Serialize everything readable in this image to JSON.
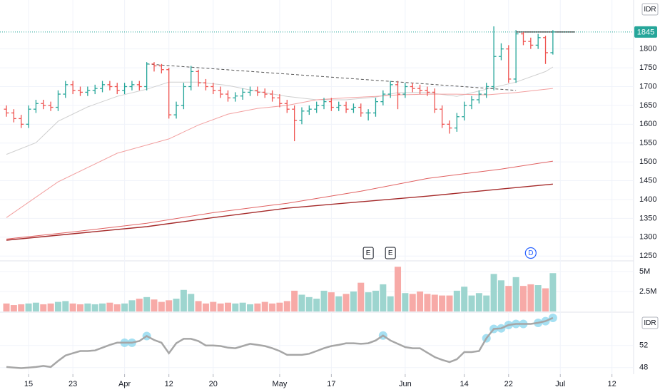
{
  "chart_data": [
    {
      "type": "ohlc",
      "currency": "IDR",
      "xlim": [
        -0.87,
        84.93
      ],
      "ylim": [
        1239,
        1930
      ],
      "yticks": [
        1250,
        1300,
        1350,
        1400,
        1450,
        1500,
        1550,
        1600,
        1650,
        1700,
        1750,
        1800
      ],
      "up_color": "#26a69a",
      "down_color": "#ef5350",
      "grid": true,
      "open": [
        1640,
        1630,
        1615,
        1600,
        1640,
        1655,
        1650,
        1645,
        1680,
        1705,
        1690,
        1685,
        1690,
        1695,
        1705,
        1700,
        1690,
        1700,
        1705,
        1700,
        1760,
        1755,
        1745,
        1625,
        1650,
        1700,
        1740,
        1710,
        1700,
        1690,
        1680,
        1670,
        1675,
        1685,
        1690,
        1685,
        1680,
        1670,
        1655,
        1640,
        1610,
        1635,
        1640,
        1650,
        1660,
        1645,
        1650,
        1640,
        1645,
        1630,
        1630,
        1660,
        1680,
        1705,
        1680,
        1700,
        1695,
        1690,
        1685,
        1640,
        1600,
        1590,
        1620,
        1650,
        1665,
        1680,
        1700,
        1780,
        1800,
        1720,
        1840,
        1820,
        1810,
        1830,
        1790
      ],
      "high": [
        1650,
        1640,
        1625,
        1650,
        1665,
        1665,
        1660,
        1690,
        1715,
        1715,
        1700,
        1700,
        1705,
        1715,
        1715,
        1710,
        1710,
        1715,
        1715,
        1765,
        1765,
        1760,
        1750,
        1660,
        1710,
        1755,
        1745,
        1720,
        1710,
        1700,
        1690,
        1685,
        1695,
        1700,
        1700,
        1695,
        1690,
        1680,
        1665,
        1650,
        1645,
        1650,
        1660,
        1670,
        1670,
        1660,
        1660,
        1655,
        1655,
        1640,
        1670,
        1690,
        1715,
        1715,
        1710,
        1710,
        1705,
        1700,
        1695,
        1650,
        1610,
        1630,
        1660,
        1675,
        1690,
        1710,
        1860,
        1815,
        1810,
        1850,
        1845,
        1830,
        1840,
        1835,
        1850
      ],
      "low": [
        1620,
        1605,
        1590,
        1590,
        1630,
        1640,
        1635,
        1635,
        1670,
        1680,
        1675,
        1675,
        1680,
        1685,
        1690,
        1680,
        1680,
        1690,
        1690,
        1690,
        1740,
        1735,
        1615,
        1615,
        1640,
        1690,
        1700,
        1690,
        1680,
        1670,
        1660,
        1660,
        1665,
        1675,
        1675,
        1670,
        1660,
        1645,
        1630,
        1555,
        1600,
        1625,
        1630,
        1640,
        1635,
        1635,
        1630,
        1630,
        1620,
        1610,
        1620,
        1650,
        1670,
        1640,
        1670,
        1685,
        1680,
        1675,
        1630,
        1590,
        1575,
        1580,
        1610,
        1640,
        1655,
        1670,
        1690,
        1770,
        1710,
        1710,
        1810,
        1800,
        1800,
        1760,
        1785
      ],
      "close": [
        1630,
        1615,
        1600,
        1640,
        1655,
        1650,
        1645,
        1680,
        1705,
        1690,
        1685,
        1690,
        1695,
        1705,
        1700,
        1690,
        1700,
        1705,
        1700,
        1760,
        1755,
        1745,
        1625,
        1650,
        1700,
        1740,
        1710,
        1700,
        1690,
        1680,
        1670,
        1675,
        1685,
        1690,
        1685,
        1680,
        1670,
        1655,
        1640,
        1610,
        1635,
        1640,
        1650,
        1660,
        1645,
        1650,
        1640,
        1645,
        1630,
        1630,
        1660,
        1680,
        1705,
        1680,
        1700,
        1695,
        1690,
        1685,
        1640,
        1600,
        1590,
        1620,
        1650,
        1665,
        1680,
        1700,
        1780,
        1800,
        1720,
        1840,
        1820,
        1810,
        1830,
        1790,
        1845
      ],
      "moving_averages": [
        {
          "color": "#cfcfcf",
          "x": [
            0,
            4,
            7,
            11,
            15,
            19,
            22,
            26,
            30,
            34,
            38,
            42,
            46,
            50,
            53,
            57,
            61,
            65,
            69,
            73,
            74
          ],
          "values": [
            1520,
            1551,
            1608,
            1646,
            1674,
            1693,
            1712,
            1712,
            1703,
            1687,
            1674,
            1665,
            1665,
            1672,
            1684,
            1684,
            1674,
            1693,
            1712,
            1740,
            1752
          ]
        },
        {
          "color": "#f2a0a0",
          "x": [
            0,
            7,
            15,
            22,
            26,
            30,
            34,
            38,
            42,
            46,
            50,
            53,
            57,
            61,
            65,
            69,
            74
          ],
          "values": [
            1352,
            1447,
            1523,
            1561,
            1598,
            1627,
            1642,
            1650,
            1665,
            1670,
            1674,
            1678,
            1680,
            1680,
            1678,
            1684,
            1695
          ]
        },
        {
          "color": "#e06060",
          "x": [
            0,
            9,
            19,
            28,
            38,
            48,
            57,
            67,
            74
          ],
          "values": [
            1295,
            1314,
            1337,
            1365,
            1390,
            1422,
            1456,
            1481,
            1502
          ]
        },
        {
          "color": "#a52a2a",
          "x": [
            0,
            9,
            19,
            28,
            38,
            48,
            57,
            67,
            74
          ],
          "values": [
            1292,
            1309,
            1328,
            1352,
            1377,
            1394,
            1409,
            1428,
            1441
          ]
        }
      ],
      "trendline": {
        "color": "#555555",
        "x": [
          19,
          69
        ],
        "values": [
          1760,
          1690
        ]
      },
      "resistance": {
        "color": "#222222",
        "x": [
          69,
          77
        ],
        "values": [
          1845,
          1845
        ]
      },
      "events": [
        {
          "index": 49,
          "label": "E"
        },
        {
          "index": 52,
          "label": "E"
        },
        {
          "index": 71,
          "label": "D"
        }
      ]
    },
    {
      "type": "bar",
      "xlim": [
        -0.87,
        84.93
      ],
      "ylim": [
        0,
        6250000
      ],
      "yticks": [
        {
          "value": 2500000,
          "label": "2.5M"
        },
        {
          "value": 5000000,
          "label": "5M"
        }
      ],
      "up_color": "#9dd5cf",
      "down_color": "#f7aaa7",
      "values": [
        1000000,
        800000,
        900000,
        1000000,
        1100000,
        900000,
        1000000,
        1200000,
        1300000,
        1000000,
        900000,
        1000000,
        900000,
        1000000,
        1100000,
        900000,
        1000000,
        1400000,
        1600000,
        1800000,
        1500000,
        1200000,
        1400000,
        1600000,
        2700000,
        2200000,
        1300000,
        1000000,
        1200000,
        1000000,
        1100000,
        1000000,
        1100000,
        900000,
        1000000,
        1200000,
        1000000,
        1100000,
        1300000,
        2600000,
        2100000,
        1800000,
        1600000,
        2600000,
        2400000,
        1900000,
        2200000,
        2500000,
        3600000,
        2400000,
        2600000,
        3400000,
        1900000,
        5600000,
        2300000,
        2200000,
        2500000,
        2200000,
        2100000,
        2000000,
        2000000,
        2600000,
        3100000,
        2000000,
        2300000,
        2000000,
        4700000,
        3900000,
        3200000,
        4300000,
        3200000,
        3400000,
        3300000,
        2900000,
        4800000
      ]
    },
    {
      "type": "line",
      "currency": "IDR",
      "xlim": [
        -0.87,
        84.93
      ],
      "ylim": [
        46.8,
        57.9
      ],
      "yticks": [
        48,
        52
      ],
      "color": "#a6a6a6",
      "highlight_color": "#8fd8ef",
      "values": [
        48.1,
        48.0,
        47.9,
        48.0,
        48.1,
        48.3,
        48.1,
        49.2,
        50.2,
        50.6,
        51.0,
        51.0,
        51.1,
        51.6,
        52.1,
        52.5,
        52.5,
        52.5,
        52.8,
        53.7,
        53.0,
        52.5,
        50.6,
        52.4,
        53.2,
        53.2,
        52.8,
        52.0,
        52.0,
        51.9,
        51.6,
        51.5,
        51.9,
        52.3,
        52.1,
        51.9,
        51.5,
        51.0,
        50.3,
        50.3,
        50.3,
        50.5,
        51.0,
        51.5,
        51.9,
        52.1,
        52.4,
        52.4,
        52.3,
        52.4,
        52.9,
        53.8,
        52.9,
        52.3,
        51.7,
        51.5,
        51.5,
        50.7,
        49.9,
        49.4,
        49.0,
        49.5,
        50.8,
        50.8,
        51.0,
        53.3,
        55.0,
        55.1,
        55.7,
        55.9,
        55.9,
        55.9,
        56.1,
        56.4,
        57.0
      ],
      "highlight": [
        16,
        17,
        19,
        51,
        65,
        66,
        67,
        68,
        69,
        70,
        72,
        73,
        74
      ],
      "xticks": [
        {
          "value": 3,
          "label": "15"
        },
        {
          "value": 9,
          "label": "23"
        },
        {
          "value": 16,
          "label": "Apr"
        },
        {
          "value": 22,
          "label": "12"
        },
        {
          "value": 28,
          "label": "20"
        },
        {
          "value": 37,
          "label": "May"
        },
        {
          "value": 44,
          "label": "17"
        },
        {
          "value": 54,
          "label": "Jun"
        },
        {
          "value": 62,
          "label": "14"
        },
        {
          "value": 68,
          "label": "22"
        },
        {
          "value": 75,
          "label": "Jul"
        },
        {
          "value": 82,
          "label": "12"
        }
      ]
    }
  ]
}
